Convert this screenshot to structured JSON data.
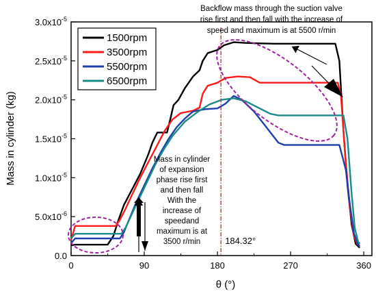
{
  "chart_data": {
    "type": "line",
    "xlabel": "θ (°)",
    "ylabel": "Mass in cylinder (kg)",
    "xlim": [
      0,
      370
    ],
    "ylim": [
      0,
      3e-05
    ],
    "xticks": [
      0,
      90,
      180,
      270,
      360
    ],
    "xtick_labels": [
      "0",
      "90",
      "180",
      "270",
      "360"
    ],
    "yticks": [
      0,
      5e-06,
      1e-05,
      1.5e-05,
      2e-05,
      2.5e-05,
      3e-05
    ],
    "ytick_labels": [
      "0.0",
      "5.0x10",
      "1.0x10",
      "1.5x10",
      "2.0x10",
      "2.5x10",
      "3.0x10"
    ],
    "ytick_exponents": [
      "",
      "-6",
      "-5",
      "-5",
      "-5",
      "-5",
      "-5"
    ],
    "grid": false,
    "legend_position": "top-left",
    "series": [
      {
        "name": "1500rpm",
        "color": "#000000",
        "points": [
          [
            0,
            1.3e-06
          ],
          [
            5,
            1.4e-06
          ],
          [
            45,
            1.4e-06
          ],
          [
            52,
            2.5e-06
          ],
          [
            58,
            4.5e-06
          ],
          [
            65,
            6.5e-06
          ],
          [
            75,
            8.5e-06
          ],
          [
            85,
            1.05e-05
          ],
          [
            95,
            1.3e-05
          ],
          [
            100,
            1.45e-05
          ],
          [
            106,
            1.58e-05
          ],
          [
            118,
            1.58e-05
          ],
          [
            122,
            1.75e-05
          ],
          [
            126,
            1.93e-05
          ],
          [
            132,
            2e-05
          ],
          [
            140,
            2.15e-05
          ],
          [
            150,
            2.3e-05
          ],
          [
            158,
            2.38e-05
          ],
          [
            162,
            2.5e-05
          ],
          [
            168,
            2.6e-05
          ],
          [
            180,
            2.64e-05
          ],
          [
            188,
            2.7e-05
          ],
          [
            200,
            2.74e-05
          ],
          [
            215,
            2.73e-05
          ],
          [
            250,
            2.72e-05
          ],
          [
            300,
            2.72e-05
          ],
          [
            325,
            2.72e-05
          ],
          [
            330,
            2.5e-05
          ],
          [
            335,
            1.6e-05
          ],
          [
            340,
            9e-06
          ],
          [
            345,
            4e-06
          ],
          [
            350,
            1.5e-06
          ],
          [
            355,
            1e-06
          ]
        ]
      },
      {
        "name": "3500rpm",
        "color": "#ff1a1a",
        "points": [
          [
            0,
            2e-06
          ],
          [
            5,
            3.8e-06
          ],
          [
            55,
            3.8e-06
          ],
          [
            60,
            4.6e-06
          ],
          [
            66,
            5.8e-06
          ],
          [
            75,
            7.8e-06
          ],
          [
            85,
            1e-05
          ],
          [
            95,
            1.2e-05
          ],
          [
            105,
            1.4e-05
          ],
          [
            115,
            1.6e-05
          ],
          [
            125,
            1.75e-05
          ],
          [
            135,
            1.83e-05
          ],
          [
            150,
            1.86e-05
          ],
          [
            158,
            1.9e-05
          ],
          [
            162,
            2.08e-05
          ],
          [
            168,
            2.18e-05
          ],
          [
            180,
            2.22e-05
          ],
          [
            190,
            2.28e-05
          ],
          [
            205,
            2.3e-05
          ],
          [
            220,
            2.29e-05
          ],
          [
            232,
            2.22e-05
          ],
          [
            260,
            2.22e-05
          ],
          [
            300,
            2.22e-05
          ],
          [
            328,
            2.22e-05
          ],
          [
            332,
            2.05e-05
          ],
          [
            337,
            1.3e-05
          ],
          [
            343,
            6e-06
          ],
          [
            348,
            2.5e-06
          ],
          [
            352,
            1.5e-06
          ],
          [
            355,
            1.3e-06
          ]
        ]
      },
      {
        "name": "5500rpm",
        "color": "#1c3fa8",
        "points": [
          [
            0,
            1.6e-06
          ],
          [
            5,
            2.2e-06
          ],
          [
            60,
            2.2e-06
          ],
          [
            65,
            3e-06
          ],
          [
            72,
            4.8e-06
          ],
          [
            80,
            6.8e-06
          ],
          [
            90,
            9e-06
          ],
          [
            100,
            1.12e-05
          ],
          [
            110,
            1.32e-05
          ],
          [
            120,
            1.5e-05
          ],
          [
            130,
            1.65e-05
          ],
          [
            140,
            1.76e-05
          ],
          [
            150,
            1.85e-05
          ],
          [
            165,
            1.88e-05
          ],
          [
            180,
            1.89e-05
          ],
          [
            190,
            1.95e-05
          ],
          [
            200,
            2.05e-05
          ],
          [
            210,
            2e-05
          ],
          [
            225,
            1.85e-05
          ],
          [
            240,
            1.65e-05
          ],
          [
            255,
            1.45e-05
          ],
          [
            262,
            1.42e-05
          ],
          [
            300,
            1.42e-05
          ],
          [
            330,
            1.42e-05
          ],
          [
            338,
            1.1e-05
          ],
          [
            343,
            6.5e-06
          ],
          [
            348,
            2.8e-06
          ],
          [
            353,
            1.4e-06
          ],
          [
            355,
            1.2e-06
          ]
        ]
      },
      {
        "name": "6500rpm",
        "color": "#1a8a8a",
        "points": [
          [
            0,
            2.2e-06
          ],
          [
            5,
            2.8e-06
          ],
          [
            62,
            2.8e-06
          ],
          [
            67,
            3.6e-06
          ],
          [
            75,
            5.4e-06
          ],
          [
            85,
            7.6e-06
          ],
          [
            95,
            9.8e-06
          ],
          [
            105,
            1.2e-05
          ],
          [
            115,
            1.38e-05
          ],
          [
            125,
            1.54e-05
          ],
          [
            140,
            1.72e-05
          ],
          [
            155,
            1.84e-05
          ],
          [
            170,
            1.94e-05
          ],
          [
            185,
            2e-05
          ],
          [
            200,
            2.02e-05
          ],
          [
            215,
            1.98e-05
          ],
          [
            230,
            1.9e-05
          ],
          [
            245,
            1.82e-05
          ],
          [
            255,
            1.8e-05
          ],
          [
            300,
            1.8e-05
          ],
          [
            335,
            1.8e-05
          ],
          [
            340,
            1.5e-05
          ],
          [
            345,
            8e-06
          ],
          [
            349,
            3.5e-06
          ],
          [
            353,
            1.8e-06
          ],
          [
            355,
            1.5e-06
          ]
        ]
      }
    ],
    "reference_line": {
      "x": 184.32,
      "label": "184.32°",
      "color": "#e0202a"
    },
    "annotations": {
      "top_note": [
        "Backflow mass through the suction valve",
        "rise first and then fall with the increase of",
        "speed and maximum is at 5500 r/min"
      ],
      "middle_note": [
        "Mass in cylinder",
        "of expansion",
        "phase rise first",
        "and then fall",
        "With the",
        "increase of",
        "speedand",
        "maximum is at",
        "3500 r/min"
      ]
    },
    "highlight_color": "#a020a0"
  }
}
